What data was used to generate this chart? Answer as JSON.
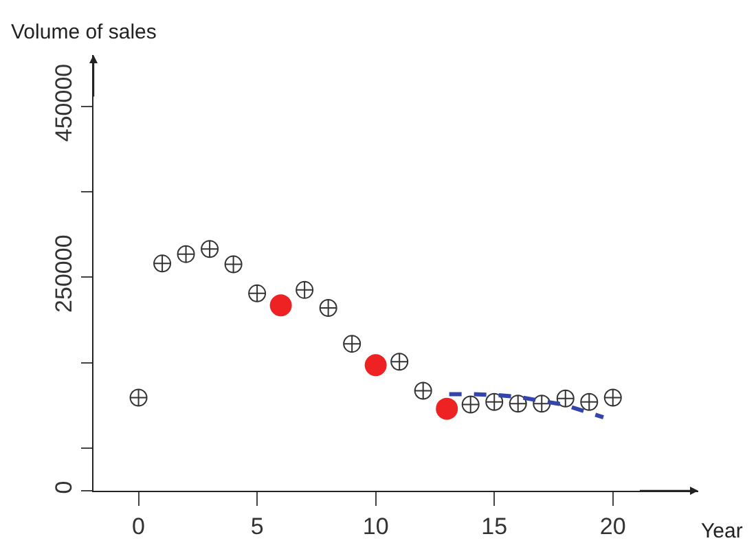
{
  "chart_data": {
    "type": "scatter",
    "xlabel": "Year",
    "ylabel": "Volume of sales",
    "xlim": [
      -1.9,
      23.6
    ],
    "xticks": [
      0,
      5,
      10,
      15,
      20
    ],
    "ylim": [
      0,
      510000
    ],
    "yticks": [
      0,
      {
        "value": 50000,
        "label": null
      },
      {
        "value": 150000,
        "label": null
      },
      250000,
      {
        "value": 350000,
        "label": null
      },
      450000
    ],
    "grid": false,
    "series": [
      {
        "marker": "cross",
        "color": "#333333",
        "x": [
          0,
          1,
          2,
          3,
          4,
          5,
          7,
          8,
          9,
          11,
          12,
          14,
          15,
          16,
          17,
          18,
          19,
          20
        ],
        "values": [
          109000,
          266000,
          277000,
          283000,
          265000,
          231000,
          235000,
          214000,
          172000,
          151000,
          117000,
          101000,
          104000,
          102000,
          102000,
          108000,
          104000,
          109000
        ]
      },
      {
        "marker": "circle",
        "color": "#ee2222",
        "x": [
          6,
          10,
          13
        ],
        "values": [
          217000,
          147000,
          96000
        ]
      },
      {
        "type": "line",
        "line_style": "dashed",
        "color": "#3344aa",
        "x": [
          13.1,
          14.1,
          15.1,
          16,
          17,
          17.9,
          18.8,
          19.6
        ],
        "values": [
          113000,
          113000,
          112000,
          110000,
          105000,
          101000,
          93000,
          86000
        ]
      }
    ]
  }
}
